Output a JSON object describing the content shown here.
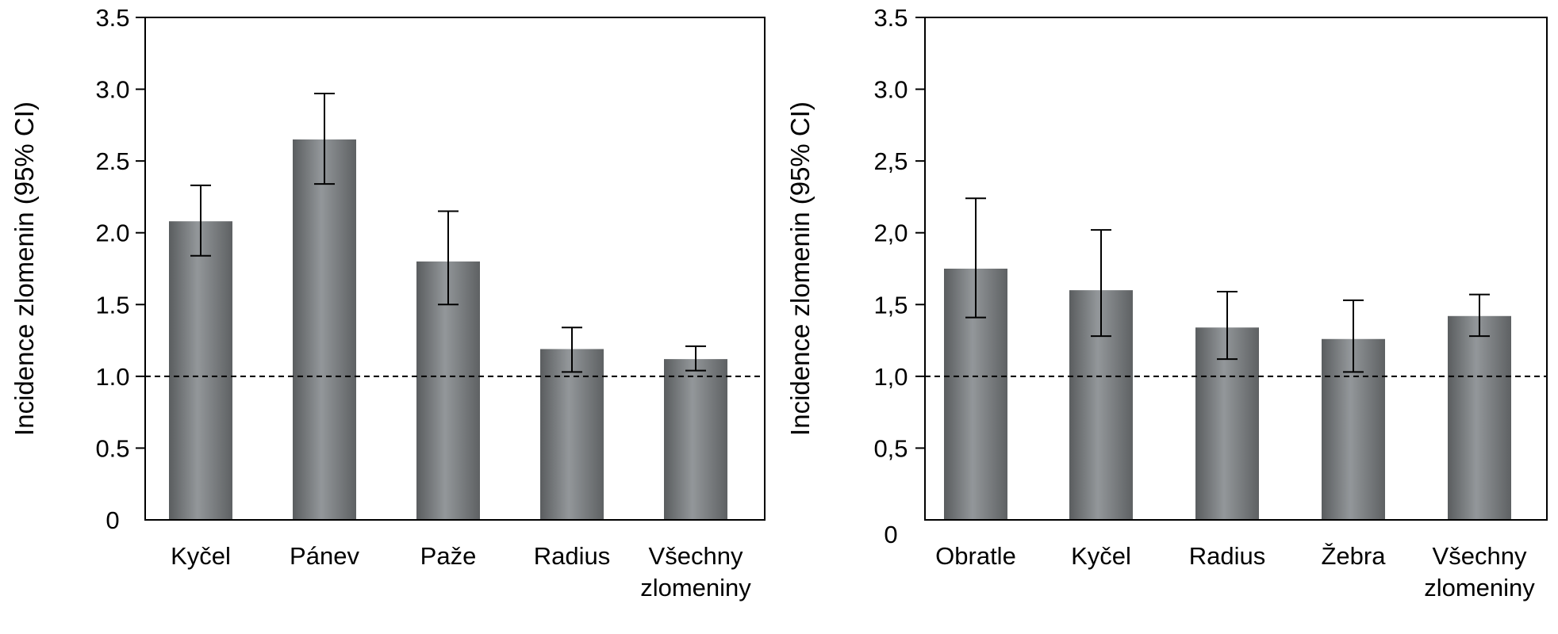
{
  "chart_data": [
    {
      "type": "bar",
      "ylabel": "Incidence zlomenin  (95% CI)",
      "ylim": [
        0,
        3.5
      ],
      "yticks": [
        0,
        0.5,
        1.0,
        1.5,
        2.0,
        2.5,
        3.0,
        3.5
      ],
      "ytick_labels": [
        "0",
        "0.5",
        "1.0",
        "1.5",
        "2.0",
        "2.5",
        "3.0",
        "3.5"
      ],
      "reference_line": 1.0,
      "categories": [
        [
          "Kyčel"
        ],
        [
          "Pánev"
        ],
        [
          "Paže"
        ],
        [
          "Radius"
        ],
        [
          "Všechny",
          "zlomeniny"
        ]
      ],
      "values": [
        2.08,
        2.65,
        1.8,
        1.19,
        1.12
      ],
      "ci_low": [
        1.84,
        2.34,
        1.5,
        1.03,
        1.04
      ],
      "ci_high": [
        2.33,
        2.97,
        2.15,
        1.34,
        1.21
      ],
      "bar_color": "#767a7b"
    },
    {
      "type": "bar",
      "ylabel": "Incidence zlomenin  (95% CI)",
      "ylim": [
        0,
        3.5
      ],
      "yticks": [
        0,
        0.5,
        1.0,
        1.5,
        2.0,
        2.5,
        3.0,
        3.5
      ],
      "ytick_labels": [
        "0",
        "0,5",
        "1,0",
        "1,5",
        "2,0",
        "2,5",
        "3.0",
        "3.5"
      ],
      "reference_line": 1.0,
      "categories": [
        [
          "Obratle"
        ],
        [
          "Kyčel"
        ],
        [
          "Radius"
        ],
        [
          "Žebra"
        ],
        [
          "Všechny",
          "zlomeniny"
        ]
      ],
      "values": [
        1.75,
        1.6,
        1.34,
        1.26,
        1.42
      ],
      "ci_low": [
        1.41,
        1.28,
        1.12,
        1.03,
        1.28
      ],
      "ci_high": [
        2.24,
        2.02,
        1.59,
        1.53,
        1.57
      ],
      "bar_color": "#767a7b"
    }
  ]
}
